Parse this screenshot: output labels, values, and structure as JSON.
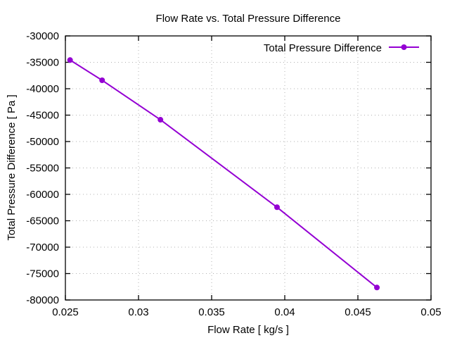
{
  "chart_data": {
    "type": "line",
    "title": "Flow Rate vs. Total Pressure Difference",
    "xlabel": "Flow Rate [ kg/s ]",
    "ylabel": "Total Pressure Difference [ Pa ]",
    "xlim": [
      0.025,
      0.05
    ],
    "ylim": [
      -80000,
      -30000
    ],
    "xticks": [
      0.025,
      0.03,
      0.035,
      0.04,
      0.045,
      0.05
    ],
    "xtick_labels": [
      "0.025",
      "0.03",
      "0.035",
      "0.04",
      "0.045",
      "0.05"
    ],
    "yticks": [
      -80000,
      -75000,
      -70000,
      -65000,
      -60000,
      -55000,
      -50000,
      -45000,
      -40000,
      -35000,
      -30000
    ],
    "ytick_labels": [
      "-80000",
      "-75000",
      "-70000",
      "-65000",
      "-60000",
      "-55000",
      "-50000",
      "-45000",
      "-40000",
      "-35000",
      "-30000"
    ],
    "grid": true,
    "legend_position": "top-right",
    "series": [
      {
        "name": "Total Pressure Difference",
        "color": "#9400d3",
        "marker": "circle",
        "x": [
          0.02532,
          0.02751,
          0.0315,
          0.03947,
          0.0463
        ],
        "y": [
          -34570,
          -38400,
          -45870,
          -62440,
          -77640
        ]
      }
    ]
  }
}
